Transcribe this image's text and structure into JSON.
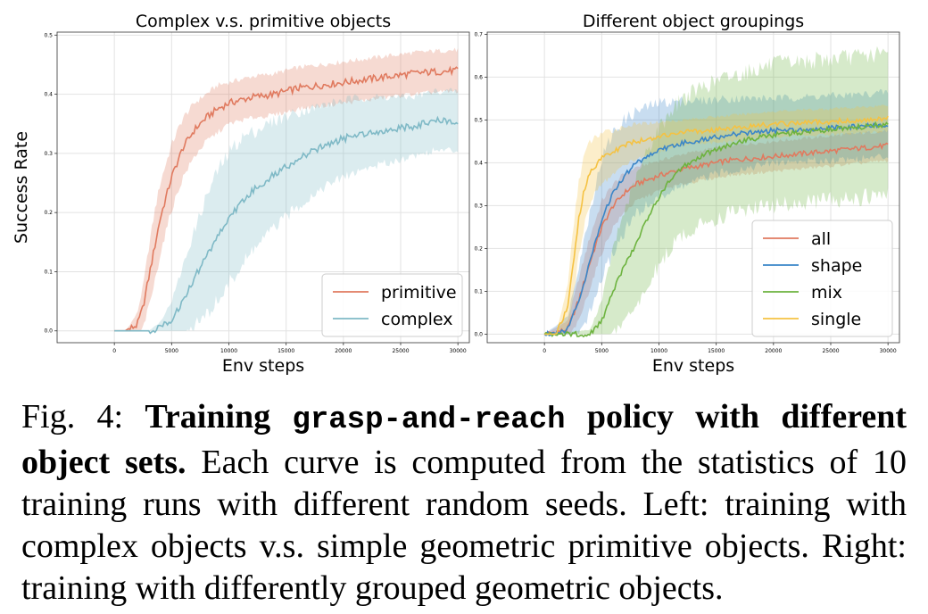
{
  "chart_data": [
    {
      "type": "line",
      "title": "Complex v.s. primitive objects",
      "xlabel": "Env steps",
      "ylabel": "Success Rate",
      "xlim": [
        -5000,
        31000
      ],
      "ylim": [
        -0.02,
        0.505
      ],
      "xticks": [
        0,
        5000,
        10000,
        15000,
        20000,
        25000,
        30000
      ],
      "yticks": [
        0.0,
        0.1,
        0.2,
        0.3,
        0.4,
        0.5
      ],
      "ytick_labels": [
        "0.0",
        "0.1",
        "0.2",
        "0.3",
        "0.4",
        "0.5"
      ],
      "grid": true,
      "legend": "bottom-right",
      "series": [
        {
          "name": "primitive",
          "color": "#e07a5f",
          "x": [
            0,
            1000,
            2000,
            2500,
            3000,
            3500,
            4000,
            5000,
            6000,
            7000,
            8000,
            9000,
            10000,
            12000,
            14000,
            16000,
            18000,
            20000,
            22000,
            24000,
            26000,
            28000,
            30000
          ],
          "y": [
            0.0,
            0.0,
            0.01,
            0.04,
            0.09,
            0.14,
            0.19,
            0.26,
            0.31,
            0.34,
            0.36,
            0.375,
            0.385,
            0.395,
            0.4,
            0.41,
            0.415,
            0.42,
            0.425,
            0.43,
            0.435,
            0.438,
            0.44
          ],
          "band": [
            0.0,
            0.0,
            0.02,
            0.035,
            0.05,
            0.06,
            0.06,
            0.055,
            0.05,
            0.045,
            0.04,
            0.04,
            0.035,
            0.035,
            0.035,
            0.035,
            0.035,
            0.035,
            0.035,
            0.035,
            0.035,
            0.035,
            0.035
          ]
        },
        {
          "name": "complex",
          "color": "#7fb9c6",
          "x": [
            0,
            3000,
            4000,
            5000,
            6000,
            7000,
            8000,
            9000,
            10000,
            11000,
            12000,
            14000,
            16000,
            18000,
            20000,
            22000,
            24000,
            26000,
            28000,
            30000
          ],
          "y": [
            0.0,
            0.0,
            0.005,
            0.02,
            0.05,
            0.09,
            0.125,
            0.16,
            0.19,
            0.215,
            0.235,
            0.265,
            0.29,
            0.31,
            0.325,
            0.335,
            0.34,
            0.345,
            0.355,
            0.355
          ],
          "band": [
            0.0,
            0.0,
            0.01,
            0.03,
            0.06,
            0.08,
            0.1,
            0.11,
            0.11,
            0.11,
            0.1,
            0.09,
            0.08,
            0.07,
            0.065,
            0.06,
            0.055,
            0.05,
            0.05,
            0.05
          ]
        }
      ]
    },
    {
      "type": "line",
      "title": "Different object groupings",
      "xlabel": "Env steps",
      "ylabel": "",
      "xlim": [
        -5000,
        31000
      ],
      "ylim": [
        -0.02,
        0.705
      ],
      "xticks": [
        0,
        5000,
        10000,
        15000,
        20000,
        25000,
        30000
      ],
      "yticks": [
        0.0,
        0.1,
        0.2,
        0.3,
        0.4,
        0.5,
        0.6,
        0.7
      ],
      "ytick_labels": [
        "0.0",
        "0.1",
        "0.2",
        "0.3",
        "0.4",
        "0.5",
        "0.6",
        "0.7"
      ],
      "grid": true,
      "legend": "bottom-right",
      "series": [
        {
          "name": "all",
          "color": "#e07a5f",
          "x": [
            0,
            2000,
            3000,
            4000,
            5000,
            6000,
            7000,
            8000,
            10000,
            12000,
            14000,
            16000,
            18000,
            20000,
            24000,
            28000,
            30000
          ],
          "y": [
            0.0,
            0.01,
            0.08,
            0.17,
            0.25,
            0.3,
            0.33,
            0.35,
            0.37,
            0.385,
            0.395,
            0.405,
            0.41,
            0.415,
            0.425,
            0.435,
            0.44
          ],
          "band": [
            0.0,
            0.02,
            0.05,
            0.06,
            0.06,
            0.05,
            0.045,
            0.04,
            0.035,
            0.035,
            0.035,
            0.035,
            0.035,
            0.035,
            0.035,
            0.035,
            0.035
          ]
        },
        {
          "name": "shape",
          "color": "#3a86c8",
          "x": [
            0,
            2000,
            3000,
            4000,
            5000,
            6000,
            7000,
            8000,
            10000,
            12000,
            14000,
            16000,
            18000,
            20000,
            24000,
            28000,
            30000
          ],
          "y": [
            0.0,
            0.01,
            0.08,
            0.17,
            0.27,
            0.33,
            0.37,
            0.4,
            0.43,
            0.445,
            0.455,
            0.465,
            0.47,
            0.475,
            0.48,
            0.485,
            0.49
          ],
          "band": [
            0.0,
            0.03,
            0.08,
            0.12,
            0.14,
            0.14,
            0.13,
            0.12,
            0.11,
            0.1,
            0.09,
            0.085,
            0.08,
            0.075,
            0.075,
            0.075,
            0.075
          ]
        },
        {
          "name": "mix",
          "color": "#6db33f",
          "x": [
            0,
            4000,
            5000,
            6000,
            7000,
            8000,
            9000,
            10000,
            11000,
            12000,
            14000,
            16000,
            18000,
            20000,
            24000,
            28000,
            30000
          ],
          "y": [
            0.0,
            0.0,
            0.03,
            0.1,
            0.16,
            0.21,
            0.27,
            0.32,
            0.36,
            0.39,
            0.42,
            0.44,
            0.455,
            0.465,
            0.475,
            0.485,
            0.49
          ],
          "band": [
            0.0,
            0.01,
            0.05,
            0.1,
            0.13,
            0.15,
            0.16,
            0.16,
            0.16,
            0.16,
            0.16,
            0.16,
            0.16,
            0.165,
            0.165,
            0.165,
            0.165
          ]
        },
        {
          "name": "single",
          "color": "#f5c242",
          "x": [
            0,
            1000,
            2000,
            2500,
            3000,
            3500,
            4000,
            5000,
            6000,
            7000,
            8000,
            10000,
            12000,
            14000,
            16000,
            18000,
            20000,
            24000,
            28000,
            30000
          ],
          "y": [
            0.0,
            0.0,
            0.06,
            0.16,
            0.27,
            0.34,
            0.38,
            0.41,
            0.425,
            0.44,
            0.45,
            0.46,
            0.47,
            0.475,
            0.48,
            0.485,
            0.49,
            0.495,
            0.5,
            0.505
          ],
          "band": [
            0.0,
            0.0,
            0.05,
            0.08,
            0.09,
            0.08,
            0.07,
            0.06,
            0.05,
            0.045,
            0.04,
            0.035,
            0.03,
            0.03,
            0.03,
            0.03,
            0.03,
            0.03,
            0.03,
            0.03
          ]
        }
      ]
    }
  ],
  "caption": {
    "fig_label": "Fig. 4:",
    "bold_part1": "Training",
    "mono": "grasp-and-reach",
    "bold_part2": "policy with different object sets.",
    "text": "Each curve is computed from the statistics of 10 training runs with different random seeds. Left: training with complex objects v.s. simple geometric primitive objects. Right: training with differently grouped geometric objects."
  }
}
